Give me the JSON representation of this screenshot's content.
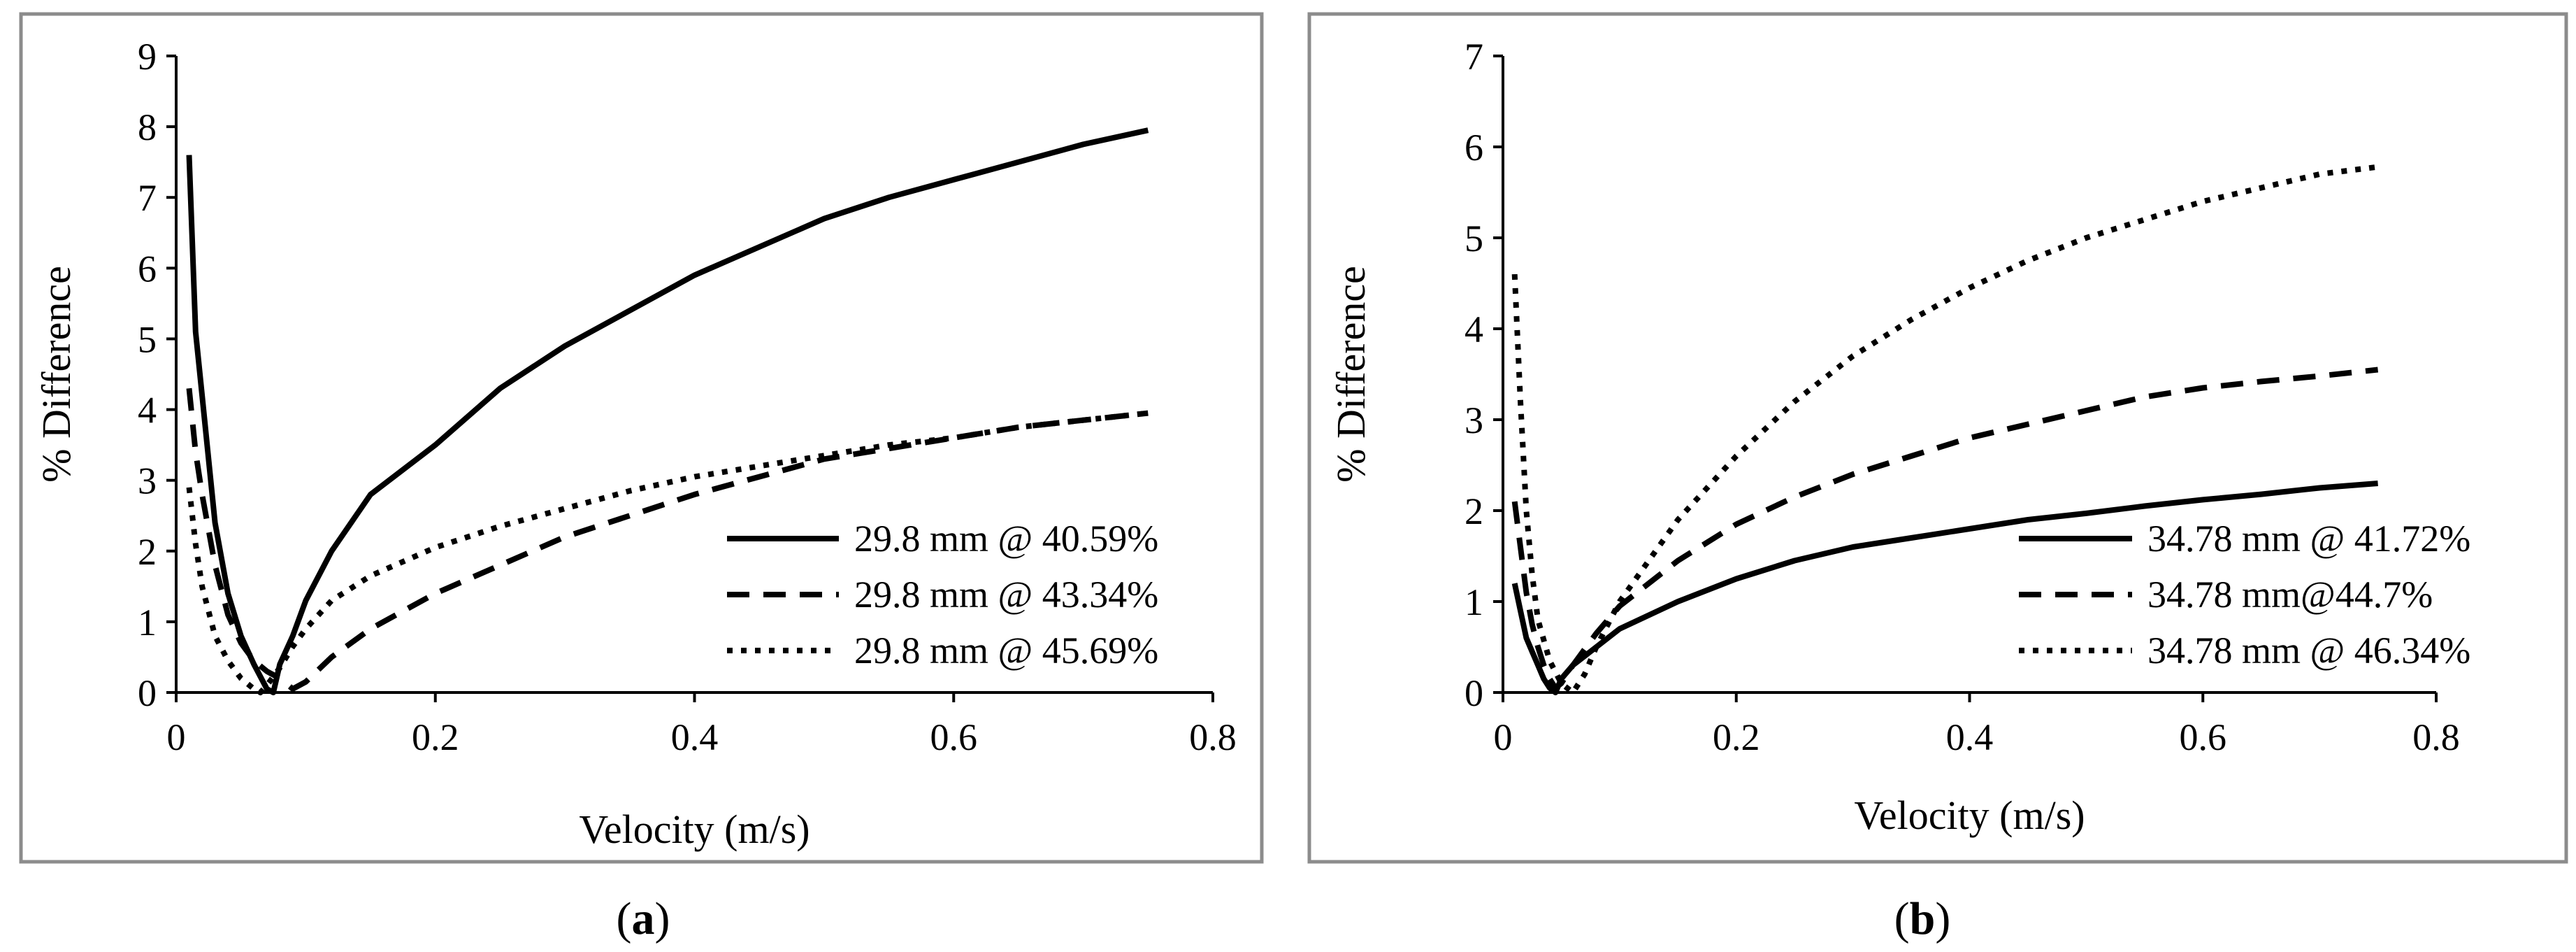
{
  "chart_data": [
    {
      "type": "line",
      "panel_label": "a",
      "xlabel": "Velocity (m/s)",
      "ylabel": "% Difference",
      "xlim": [
        0,
        0.8
      ],
      "ylim": [
        0,
        9
      ],
      "xticks": [
        0,
        0.2,
        0.4,
        0.6,
        0.8
      ],
      "xtick_labels": [
        "0",
        "0.2",
        "0.4",
        "0.6",
        "0.8"
      ],
      "yticks": [
        0,
        1,
        2,
        3,
        4,
        5,
        6,
        7,
        8,
        9
      ],
      "ytick_labels": [
        "0",
        "1",
        "2",
        "3",
        "4",
        "5",
        "6",
        "7",
        "8",
        "9"
      ],
      "legend_position": "lower-right",
      "series": [
        {
          "name": "29.8 mm @ 40.59%",
          "style": "solid",
          "x": [
            0.01,
            0.015,
            0.02,
            0.03,
            0.04,
            0.05,
            0.06,
            0.07,
            0.075,
            0.08,
            0.09,
            0.1,
            0.12,
            0.15,
            0.2,
            0.25,
            0.3,
            0.35,
            0.4,
            0.45,
            0.5,
            0.55,
            0.6,
            0.65,
            0.7,
            0.75
          ],
          "y": [
            7.6,
            5.1,
            4.2,
            2.4,
            1.4,
            0.8,
            0.4,
            0.05,
            0.0,
            0.4,
            0.8,
            1.3,
            2.0,
            2.8,
            3.5,
            4.3,
            4.9,
            5.4,
            5.9,
            6.3,
            6.7,
            7.0,
            7.25,
            7.5,
            7.75,
            7.95
          ]
        },
        {
          "name": "29.8 mm @ 43.34%",
          "style": "dashed",
          "x": [
            0.01,
            0.015,
            0.02,
            0.03,
            0.04,
            0.05,
            0.06,
            0.07,
            0.08,
            0.09,
            0.1,
            0.12,
            0.15,
            0.2,
            0.25,
            0.3,
            0.35,
            0.4,
            0.45,
            0.5,
            0.55,
            0.6,
            0.65,
            0.7,
            0.75
          ],
          "y": [
            4.3,
            3.4,
            2.8,
            1.8,
            1.1,
            0.7,
            0.45,
            0.3,
            0.2,
            0.05,
            0.15,
            0.5,
            0.9,
            1.4,
            1.8,
            2.2,
            2.5,
            2.8,
            3.05,
            3.3,
            3.45,
            3.6,
            3.75,
            3.85,
            3.95
          ]
        },
        {
          "name": "29.8 mm @ 45.69%",
          "style": "dotted",
          "x": [
            0.01,
            0.015,
            0.02,
            0.03,
            0.04,
            0.05,
            0.06,
            0.065,
            0.07,
            0.08,
            0.09,
            0.1,
            0.12,
            0.15,
            0.2,
            0.25,
            0.3,
            0.35,
            0.4,
            0.45,
            0.5,
            0.55,
            0.6,
            0.65,
            0.7,
            0.75
          ],
          "y": [
            2.9,
            2.1,
            1.5,
            0.8,
            0.45,
            0.2,
            0.05,
            0.0,
            0.1,
            0.35,
            0.65,
            0.9,
            1.3,
            1.65,
            2.05,
            2.35,
            2.6,
            2.85,
            3.05,
            3.2,
            3.35,
            3.5,
            3.6,
            3.75,
            3.85,
            3.95
          ]
        }
      ]
    },
    {
      "type": "line",
      "panel_label": "b",
      "xlabel": "Velocity (m/s)",
      "ylabel": "% Difference",
      "xlim": [
        0,
        0.8
      ],
      "ylim": [
        0,
        7
      ],
      "xticks": [
        0,
        0.2,
        0.4,
        0.6,
        0.8
      ],
      "xtick_labels": [
        "0",
        "0.2",
        "0.4",
        "0.6",
        "0.8"
      ],
      "yticks": [
        0,
        1,
        2,
        3,
        4,
        5,
        6,
        7
      ],
      "ytick_labels": [
        "0",
        "1",
        "2",
        "3",
        "4",
        "5",
        "6",
        "7"
      ],
      "legend_position": "lower-right",
      "series": [
        {
          "name": "34.78 mm @ 41.72%",
          "style": "solid",
          "x": [
            0.01,
            0.015,
            0.02,
            0.025,
            0.03,
            0.035,
            0.04,
            0.045,
            0.05,
            0.06,
            0.08,
            0.1,
            0.15,
            0.2,
            0.25,
            0.3,
            0.35,
            0.4,
            0.45,
            0.5,
            0.55,
            0.6,
            0.65,
            0.7,
            0.75
          ],
          "y": [
            1.2,
            0.9,
            0.6,
            0.45,
            0.3,
            0.15,
            0.05,
            0.0,
            0.15,
            0.3,
            0.5,
            0.7,
            1.0,
            1.25,
            1.45,
            1.6,
            1.7,
            1.8,
            1.9,
            1.97,
            2.05,
            2.12,
            2.18,
            2.25,
            2.3
          ]
        },
        {
          "name": "34.78 mm@44.7%",
          "style": "dashed",
          "x": [
            0.01,
            0.015,
            0.02,
            0.025,
            0.03,
            0.035,
            0.04,
            0.045,
            0.05,
            0.06,
            0.08,
            0.1,
            0.15,
            0.2,
            0.25,
            0.3,
            0.35,
            0.4,
            0.45,
            0.5,
            0.55,
            0.6,
            0.65,
            0.7,
            0.75
          ],
          "y": [
            2.1,
            1.6,
            1.1,
            0.75,
            0.5,
            0.3,
            0.15,
            0.05,
            0.1,
            0.3,
            0.65,
            0.95,
            1.45,
            1.85,
            2.15,
            2.4,
            2.6,
            2.8,
            2.95,
            3.1,
            3.25,
            3.35,
            3.42,
            3.48,
            3.55
          ]
        },
        {
          "name": "34.78 mm @ 46.34%",
          "style": "dotted",
          "x": [
            0.01,
            0.015,
            0.02,
            0.025,
            0.03,
            0.04,
            0.05,
            0.06,
            0.07,
            0.08,
            0.1,
            0.15,
            0.2,
            0.25,
            0.3,
            0.35,
            0.4,
            0.45,
            0.5,
            0.55,
            0.6,
            0.65,
            0.7,
            0.75
          ],
          "y": [
            4.6,
            3.2,
            2.0,
            1.3,
            0.8,
            0.35,
            0.1,
            0.0,
            0.2,
            0.5,
            1.0,
            1.9,
            2.6,
            3.2,
            3.7,
            4.1,
            4.45,
            4.75,
            5.0,
            5.2,
            5.4,
            5.55,
            5.7,
            5.78
          ]
        }
      ]
    }
  ],
  "captions": [
    {
      "open": "(",
      "letter": "a",
      "close": ")"
    },
    {
      "open": "(",
      "letter": "b",
      "close": ")"
    }
  ]
}
